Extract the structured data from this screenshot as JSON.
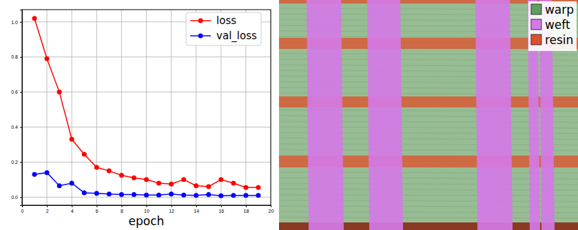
{
  "chart_data": {
    "type": "line",
    "x_label": "epoch",
    "x": [
      1,
      2,
      3,
      4,
      5,
      6,
      7,
      8,
      9,
      10,
      11,
      12,
      13,
      14,
      15,
      16,
      17,
      18,
      19
    ],
    "series": [
      {
        "name": "loss",
        "color": "#ff0000",
        "marker": "circle",
        "line_style": "solid",
        "values": [
          1.02,
          0.79,
          0.6,
          0.33,
          0.245,
          0.17,
          0.15,
          0.125,
          0.11,
          0.1,
          0.08,
          0.075,
          0.1,
          0.065,
          0.06,
          0.1,
          0.08,
          0.055,
          0.055
        ]
      },
      {
        "name": "val_loss",
        "color": "#0000ff",
        "marker": "circle",
        "line_style": "solid",
        "values": [
          0.13,
          0.14,
          0.065,
          0.08,
          0.025,
          0.022,
          0.018,
          0.015,
          0.015,
          0.012,
          0.012,
          0.018,
          0.012,
          0.01,
          0.015,
          0.008,
          0.01,
          0.01,
          0.01
        ]
      }
    ],
    "xlim": [
      0,
      20
    ],
    "xticks": [
      0,
      2,
      4,
      6,
      8,
      10,
      12,
      14,
      16,
      18,
      20
    ],
    "ylim": [
      -0.046,
      1.07
    ],
    "yticks": [
      {
        "value": 0,
        "label": "0.0"
      },
      0.2,
      0.4,
      0.6,
      0.8,
      {
        "value": 1,
        "label": "1.0"
      }
    ],
    "grid": true,
    "legend": "upper right"
  },
  "segmentation": {
    "legend": "upper right",
    "classes": [
      {
        "name": "warp",
        "color": "#5e9e5e"
      },
      {
        "name": "weft",
        "color": "#d47ae6"
      },
      {
        "name": "resin",
        "color": "#e0502a"
      }
    ]
  }
}
